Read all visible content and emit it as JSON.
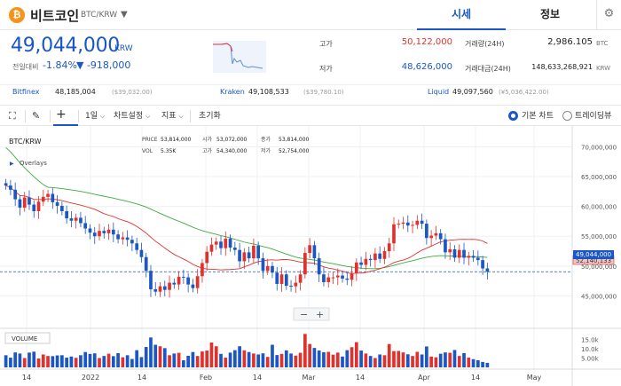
{
  "header": {
    "coin_icon_glyph": "₿",
    "coin_name": "비트코인",
    "coin_pair": "BTC/KRW",
    "tabs": [
      {
        "label": "시세"
      },
      {
        "label": "정보"
      }
    ]
  },
  "ticker": {
    "price": "49,044,000",
    "unit": "KRW",
    "change_label": "전일대비",
    "change_rate": "-1.84%",
    "change_amount": "▼ -918,000",
    "high_label": "고가",
    "high_value": "50,122,000",
    "low_label": "저가",
    "low_value": "48,626,000",
    "volume_label": "거래량(24H)",
    "volume_value": "2,986.105",
    "volume_unit": "BTC",
    "amount_label": "거래대금(24H)",
    "amount_value": "148,633,268,921",
    "amount_unit": "KRW"
  },
  "exchanges": [
    {
      "name": "Bitfinex",
      "price": "48,185,004",
      "usd": "($39,032.00)"
    },
    {
      "name": "Kraken",
      "price": "49,108,533",
      "usd": "($39,780.10)"
    },
    {
      "name": "Liquid",
      "price": "49,097,560",
      "usd": "(¥5,036,422.00)"
    }
  ],
  "toolbar": {
    "interval": "1일",
    "chart_settings": "차트설정",
    "indicators": "지표",
    "reset": "초기화",
    "basic_chart": "기본 차트",
    "tradingview": "트레이딩뷰"
  },
  "chart_ui": {
    "symbol": "BTC/KRW",
    "overlays": "Overlays",
    "volume_label": "VOLUME",
    "ohlc": {
      "price_label": "PRICE",
      "price": "53,814,000",
      "open_label": "시가",
      "open": "53,072,000",
      "close_label": "종가",
      "close": "53,814,000",
      "vol_label": "VOL",
      "vol": "5.35K",
      "high_label": "고가",
      "high": "54,340,000",
      "low_label": "저가",
      "low": "52,754,000"
    },
    "ma_tag": "52,140,133",
    "price_tag": "49,044,000",
    "zoom_out": "−",
    "zoom_in": "+"
  },
  "chart_data": {
    "type": "candlestick",
    "price_axis_ticks": [
      "70,000,000",
      "65,000,000",
      "60,000,000",
      "55,000,000",
      "50,000,000",
      "45,000,000"
    ],
    "volume_axis_ticks": [
      "15.0k",
      "10.0k",
      "5.00k"
    ],
    "x_ticks": [
      "14",
      "2022",
      "14",
      "Feb",
      "14",
      "Mar",
      "14",
      "Apr",
      "14",
      "May"
    ],
    "current_price": 49044000,
    "ma_value": 52140133,
    "closes": [
      63500000,
      62800000,
      61200000,
      59800000,
      61500000,
      60300000,
      59200000,
      60800000,
      61600000,
      62100000,
      60700000,
      60100000,
      59200000,
      58000000,
      57600000,
      58100000,
      57200000,
      56300000,
      55600000,
      55000000,
      55900000,
      55500000,
      56100000,
      55300000,
      54500000,
      54800000,
      54400000,
      53800000,
      52700000,
      51500000,
      49200000,
      46100000,
      45700000,
      46600000,
      46000000,
      47200000,
      46900000,
      48200000,
      48100000,
      46900000,
      46300000,
      48300000,
      50500000,
      52400000,
      53600000,
      54100000,
      53000000,
      54600000,
      53100000,
      52700000,
      50800000,
      52300000,
      51300000,
      53400000,
      51300000,
      49200000,
      50000000,
      48900000,
      47000000,
      48600000,
      46700000,
      46600000,
      47200000,
      48600000,
      52200000,
      53500000,
      51300000,
      48600000,
      47300000,
      48100000,
      48100000,
      48400000,
      47900000,
      47700000,
      48800000,
      50600000,
      50200000,
      51200000,
      51000000,
      52100000,
      51200000,
      52500000,
      53800000,
      57000000,
      57100000,
      57300000,
      56800000,
      56900000,
      57600000,
      57100000,
      54700000,
      55100000,
      55500000,
      54500000,
      52300000,
      52800000,
      51400000,
      52700000,
      51400000,
      51700000,
      51400000,
      51000000,
      49600000,
      49044000
    ],
    "volumes": [
      6.5,
      5.2,
      8,
      7.4,
      5,
      7.9,
      8.4,
      4.8,
      6.9,
      6.1,
      6,
      6.4,
      6.5,
      5.2,
      5.8,
      5.1,
      6.5,
      8.2,
      7.2,
      7.5,
      5,
      6.1,
      7.3,
      6,
      7.6,
      5.4,
      6.5,
      4.5,
      9.2,
      5.5,
      10.9,
      16,
      12.1,
      11.3,
      10.3,
      6.5,
      7.4,
      7.8,
      3.8,
      6.2,
      8.2,
      6.1,
      8.5,
      9,
      13.3,
      11.3,
      7.2,
      5.2,
      7.9,
      9.2,
      11.3,
      9.1,
      8.2,
      7.4,
      6.9,
      7.5,
      5.6,
      12.1,
      6.6,
      7.2,
      9.1,
      7.4,
      6.3,
      7.8,
      17.9,
      12.5,
      10.4,
      9,
      8.1,
      8.3,
      6.8,
      7.9,
      5.8,
      9.2,
      10.8,
      13.5,
      9,
      7.4,
      6.1,
      5,
      6.9,
      6.5,
      12.5,
      8.7,
      8.8,
      8,
      7,
      6.1,
      8.3,
      6.9,
      11.2,
      5.8,
      5.4,
      7.3,
      8,
      7.8,
      9.3,
      6.1,
      7.6,
      5.2,
      4.4,
      3.8,
      2.9,
      2.4
    ]
  }
}
